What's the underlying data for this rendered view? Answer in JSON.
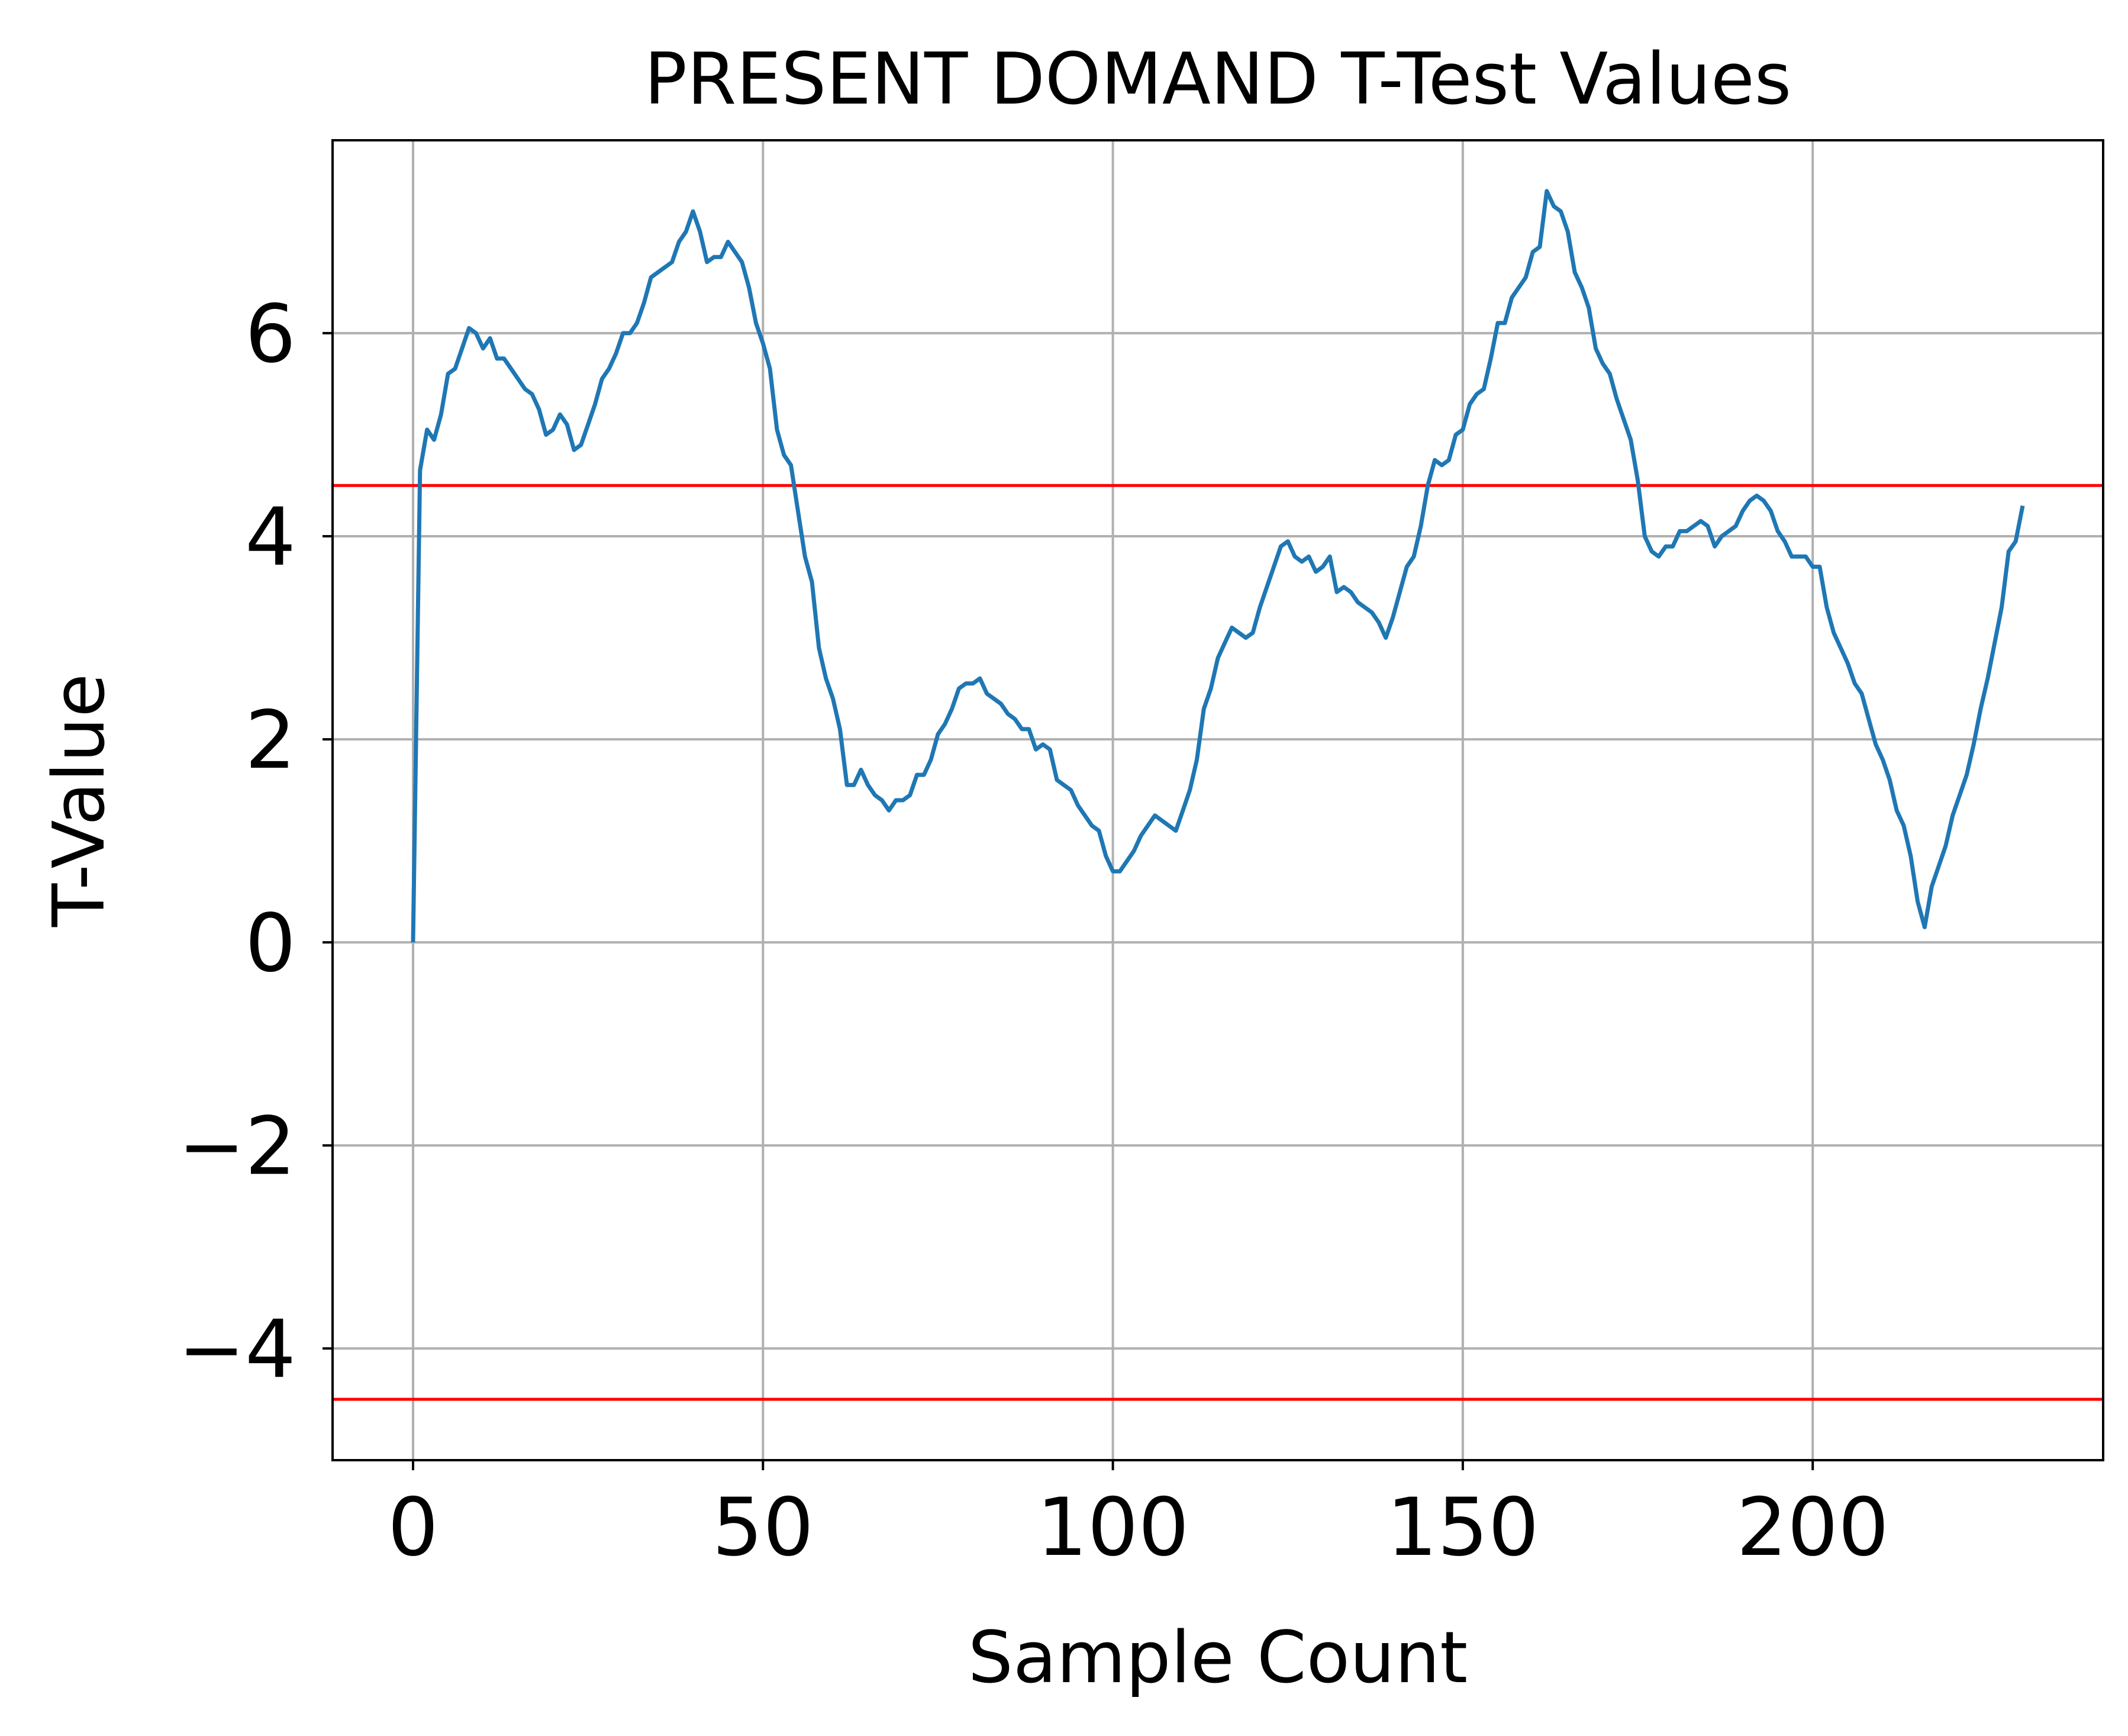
{
  "chart_data": {
    "type": "line",
    "title": "PRESENT DOMAND T-Test Values",
    "xlabel": "Sample Count",
    "ylabel": "T-Value",
    "xlim": [
      -11.5,
      241.5
    ],
    "ylim": [
      -5.1,
      7.9
    ],
    "grid": true,
    "x_ticks": [
      0,
      50,
      100,
      150,
      200
    ],
    "x_tick_labels": [
      "0",
      "50",
      "100",
      "150",
      "200"
    ],
    "y_ticks": [
      -4,
      -2,
      0,
      2,
      4,
      6
    ],
    "y_tick_labels": [
      "−4",
      "−2",
      "0",
      "2",
      "4",
      "6"
    ],
    "thresholds": [
      {
        "value": 4.5,
        "color": "#ff0000"
      },
      {
        "value": -4.5,
        "color": "#ff0000"
      }
    ],
    "series": [
      {
        "color": "#1f77b4",
        "points": [
          [
            0,
            0.0
          ],
          [
            1,
            4.65
          ],
          [
            2,
            5.05
          ],
          [
            3,
            4.95
          ],
          [
            4,
            5.2
          ],
          [
            5,
            5.6
          ],
          [
            6,
            5.65
          ],
          [
            7,
            5.85
          ],
          [
            8,
            6.05
          ],
          [
            9,
            6.0
          ],
          [
            10,
            5.85
          ],
          [
            11,
            5.95
          ],
          [
            12,
            5.75
          ],
          [
            13,
            5.75
          ],
          [
            14,
            5.65
          ],
          [
            15,
            5.55
          ],
          [
            16,
            5.45
          ],
          [
            17,
            5.4
          ],
          [
            18,
            5.25
          ],
          [
            19,
            5.0
          ],
          [
            20,
            5.05
          ],
          [
            21,
            5.2
          ],
          [
            22,
            5.1
          ],
          [
            23,
            4.85
          ],
          [
            24,
            4.9
          ],
          [
            25,
            5.1
          ],
          [
            26,
            5.3
          ],
          [
            27,
            5.55
          ],
          [
            28,
            5.65
          ],
          [
            29,
            5.8
          ],
          [
            30,
            6.0
          ],
          [
            31,
            6.0
          ],
          [
            32,
            6.1
          ],
          [
            33,
            6.3
          ],
          [
            34,
            6.55
          ],
          [
            35,
            6.6
          ],
          [
            36,
            6.65
          ],
          [
            37,
            6.7
          ],
          [
            38,
            6.9
          ],
          [
            39,
            7.0
          ],
          [
            40,
            7.2
          ],
          [
            41,
            7.0
          ],
          [
            42,
            6.7
          ],
          [
            43,
            6.75
          ],
          [
            44,
            6.75
          ],
          [
            45,
            6.9
          ],
          [
            46,
            6.8
          ],
          [
            47,
            6.7
          ],
          [
            48,
            6.45
          ],
          [
            49,
            6.1
          ],
          [
            50,
            5.9
          ],
          [
            51,
            5.65
          ],
          [
            52,
            5.05
          ],
          [
            53,
            4.8
          ],
          [
            54,
            4.7
          ],
          [
            55,
            4.25
          ],
          [
            56,
            3.8
          ],
          [
            57,
            3.55
          ],
          [
            58,
            2.9
          ],
          [
            59,
            2.6
          ],
          [
            60,
            2.4
          ],
          [
            61,
            2.1
          ],
          [
            62,
            1.55
          ],
          [
            63,
            1.55
          ],
          [
            64,
            1.7
          ],
          [
            65,
            1.55
          ],
          [
            66,
            1.45
          ],
          [
            67,
            1.4
          ],
          [
            68,
            1.3
          ],
          [
            69,
            1.4
          ],
          [
            70,
            1.4
          ],
          [
            71,
            1.45
          ],
          [
            72,
            1.65
          ],
          [
            73,
            1.65
          ],
          [
            74,
            1.8
          ],
          [
            75,
            2.05
          ],
          [
            76,
            2.15
          ],
          [
            77,
            2.3
          ],
          [
            78,
            2.5
          ],
          [
            79,
            2.55
          ],
          [
            80,
            2.55
          ],
          [
            81,
            2.6
          ],
          [
            82,
            2.45
          ],
          [
            83,
            2.4
          ],
          [
            84,
            2.35
          ],
          [
            85,
            2.25
          ],
          [
            86,
            2.2
          ],
          [
            87,
            2.1
          ],
          [
            88,
            2.1
          ],
          [
            89,
            1.9
          ],
          [
            90,
            1.95
          ],
          [
            91,
            1.9
          ],
          [
            92,
            1.6
          ],
          [
            93,
            1.55
          ],
          [
            94,
            1.5
          ],
          [
            95,
            1.35
          ],
          [
            96,
            1.25
          ],
          [
            97,
            1.15
          ],
          [
            98,
            1.1
          ],
          [
            99,
            0.85
          ],
          [
            100,
            0.7
          ],
          [
            101,
            0.7
          ],
          [
            102,
            0.8
          ],
          [
            103,
            0.9
          ],
          [
            104,
            1.05
          ],
          [
            105,
            1.15
          ],
          [
            106,
            1.25
          ],
          [
            107,
            1.2
          ],
          [
            108,
            1.15
          ],
          [
            109,
            1.1
          ],
          [
            110,
            1.3
          ],
          [
            111,
            1.5
          ],
          [
            112,
            1.8
          ],
          [
            113,
            2.3
          ],
          [
            114,
            2.5
          ],
          [
            115,
            2.8
          ],
          [
            116,
            2.95
          ],
          [
            117,
            3.1
          ],
          [
            118,
            3.05
          ],
          [
            119,
            3.0
          ],
          [
            120,
            3.05
          ],
          [
            121,
            3.3
          ],
          [
            122,
            3.5
          ],
          [
            123,
            3.7
          ],
          [
            124,
            3.9
          ],
          [
            125,
            3.95
          ],
          [
            126,
            3.8
          ],
          [
            127,
            3.75
          ],
          [
            128,
            3.8
          ],
          [
            129,
            3.65
          ],
          [
            130,
            3.7
          ],
          [
            131,
            3.8
          ],
          [
            132,
            3.45
          ],
          [
            133,
            3.5
          ],
          [
            134,
            3.45
          ],
          [
            135,
            3.35
          ],
          [
            136,
            3.3
          ],
          [
            137,
            3.25
          ],
          [
            138,
            3.15
          ],
          [
            139,
            3.0
          ],
          [
            140,
            3.2
          ],
          [
            141,
            3.45
          ],
          [
            142,
            3.7
          ],
          [
            143,
            3.8
          ],
          [
            144,
            4.1
          ],
          [
            145,
            4.5
          ],
          [
            146,
            4.75
          ],
          [
            147,
            4.7
          ],
          [
            148,
            4.75
          ],
          [
            149,
            5.0
          ],
          [
            150,
            5.05
          ],
          [
            151,
            5.3
          ],
          [
            152,
            5.4
          ],
          [
            153,
            5.45
          ],
          [
            154,
            5.75
          ],
          [
            155,
            6.1
          ],
          [
            156,
            6.1
          ],
          [
            157,
            6.35
          ],
          [
            158,
            6.45
          ],
          [
            159,
            6.55
          ],
          [
            160,
            6.8
          ],
          [
            161,
            6.85
          ],
          [
            162,
            7.4
          ],
          [
            163,
            7.25
          ],
          [
            164,
            7.2
          ],
          [
            165,
            7.0
          ],
          [
            166,
            6.6
          ],
          [
            167,
            6.45
          ],
          [
            168,
            6.25
          ],
          [
            169,
            5.85
          ],
          [
            170,
            5.7
          ],
          [
            171,
            5.6
          ],
          [
            172,
            5.35
          ],
          [
            173,
            5.15
          ],
          [
            174,
            4.95
          ],
          [
            175,
            4.55
          ],
          [
            176,
            4.0
          ],
          [
            177,
            3.85
          ],
          [
            178,
            3.8
          ],
          [
            179,
            3.9
          ],
          [
            180,
            3.9
          ],
          [
            181,
            4.05
          ],
          [
            182,
            4.05
          ],
          [
            183,
            4.1
          ],
          [
            184,
            4.15
          ],
          [
            185,
            4.1
          ],
          [
            186,
            3.9
          ],
          [
            187,
            4.0
          ],
          [
            188,
            4.05
          ],
          [
            189,
            4.1
          ],
          [
            190,
            4.25
          ],
          [
            191,
            4.35
          ],
          [
            192,
            4.4
          ],
          [
            193,
            4.35
          ],
          [
            194,
            4.25
          ],
          [
            195,
            4.05
          ],
          [
            196,
            3.95
          ],
          [
            197,
            3.8
          ],
          [
            198,
            3.8
          ],
          [
            199,
            3.8
          ],
          [
            200,
            3.7
          ],
          [
            201,
            3.7
          ],
          [
            202,
            3.3
          ],
          [
            203,
            3.05
          ],
          [
            204,
            2.9
          ],
          [
            205,
            2.75
          ],
          [
            206,
            2.55
          ],
          [
            207,
            2.45
          ],
          [
            208,
            2.2
          ],
          [
            209,
            1.95
          ],
          [
            210,
            1.8
          ],
          [
            211,
            1.6
          ],
          [
            212,
            1.3
          ],
          [
            213,
            1.15
          ],
          [
            214,
            0.85
          ],
          [
            215,
            0.4
          ],
          [
            216,
            0.15
          ],
          [
            217,
            0.55
          ],
          [
            218,
            0.75
          ],
          [
            219,
            0.95
          ],
          [
            220,
            1.25
          ],
          [
            221,
            1.45
          ],
          [
            222,
            1.65
          ],
          [
            223,
            1.95
          ],
          [
            224,
            2.3
          ],
          [
            225,
            2.6
          ],
          [
            226,
            2.95
          ],
          [
            227,
            3.3
          ],
          [
            228,
            3.85
          ],
          [
            229,
            3.95
          ],
          [
            230,
            4.3
          ]
        ]
      }
    ]
  }
}
